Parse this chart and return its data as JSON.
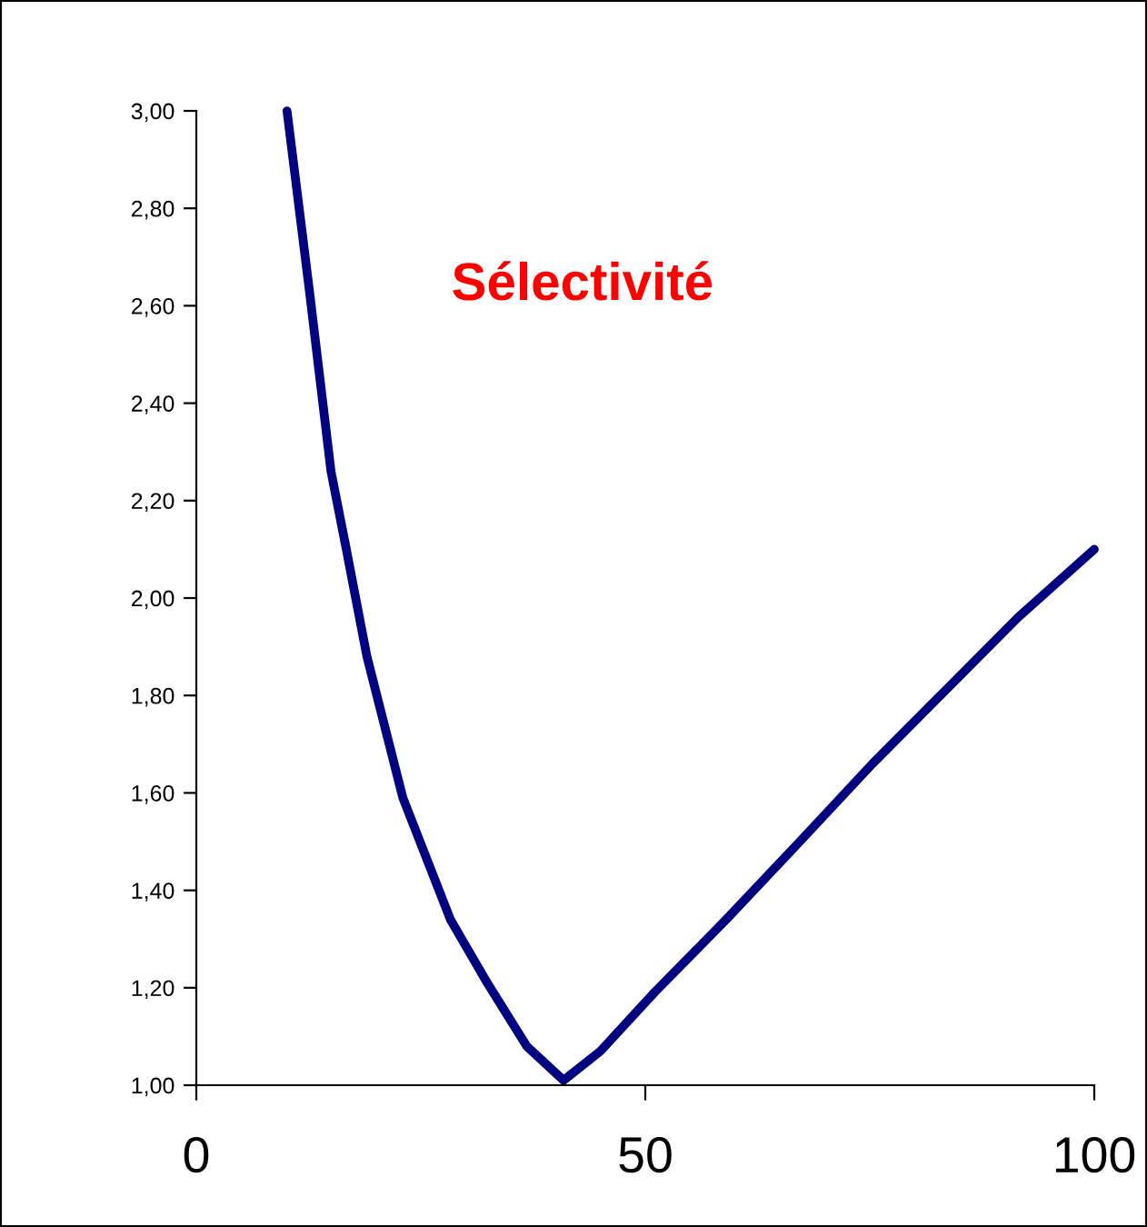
{
  "chart_data": {
    "type": "line",
    "title": "Sélectivité",
    "x": [
      10.1,
      12.6,
      15,
      16.6,
      19,
      23,
      28.3,
      32.4,
      36.8,
      40.9,
      45,
      51,
      59,
      67.2,
      75.3,
      83.4,
      91.5,
      100
    ],
    "series": [
      {
        "color": "#000080",
        "values": [
          3.0,
          2.63,
          2.26,
          2.11,
          1.88,
          1.59,
          1.34,
          1.21,
          1.08,
          1.01,
          1.07,
          1.19,
          1.34,
          1.5,
          1.66,
          1.81,
          1.96,
          2.1
        ]
      }
    ],
    "xlim": [
      0,
      100
    ],
    "ylim": [
      1,
      3
    ],
    "xticks": [
      0,
      50,
      100
    ],
    "yticks": [
      {
        "value": 1,
        "label": "1,00"
      },
      {
        "value": 1.2,
        "label": "1,20"
      },
      {
        "value": 1.4,
        "label": "1,40"
      },
      {
        "value": 1.6,
        "label": "1,60"
      },
      {
        "value": 1.8,
        "label": "1,80"
      },
      {
        "value": 2,
        "label": "2,00"
      },
      {
        "value": 2.2,
        "label": "2,20"
      },
      {
        "value": 2.4,
        "label": "2,40"
      },
      {
        "value": 2.6,
        "label": "2,60"
      },
      {
        "value": 2.8,
        "label": "2,80"
      },
      {
        "value": 3,
        "label": "3,00"
      }
    ],
    "grid": false,
    "legend": false,
    "marker": "none",
    "line_style": "solid"
  }
}
